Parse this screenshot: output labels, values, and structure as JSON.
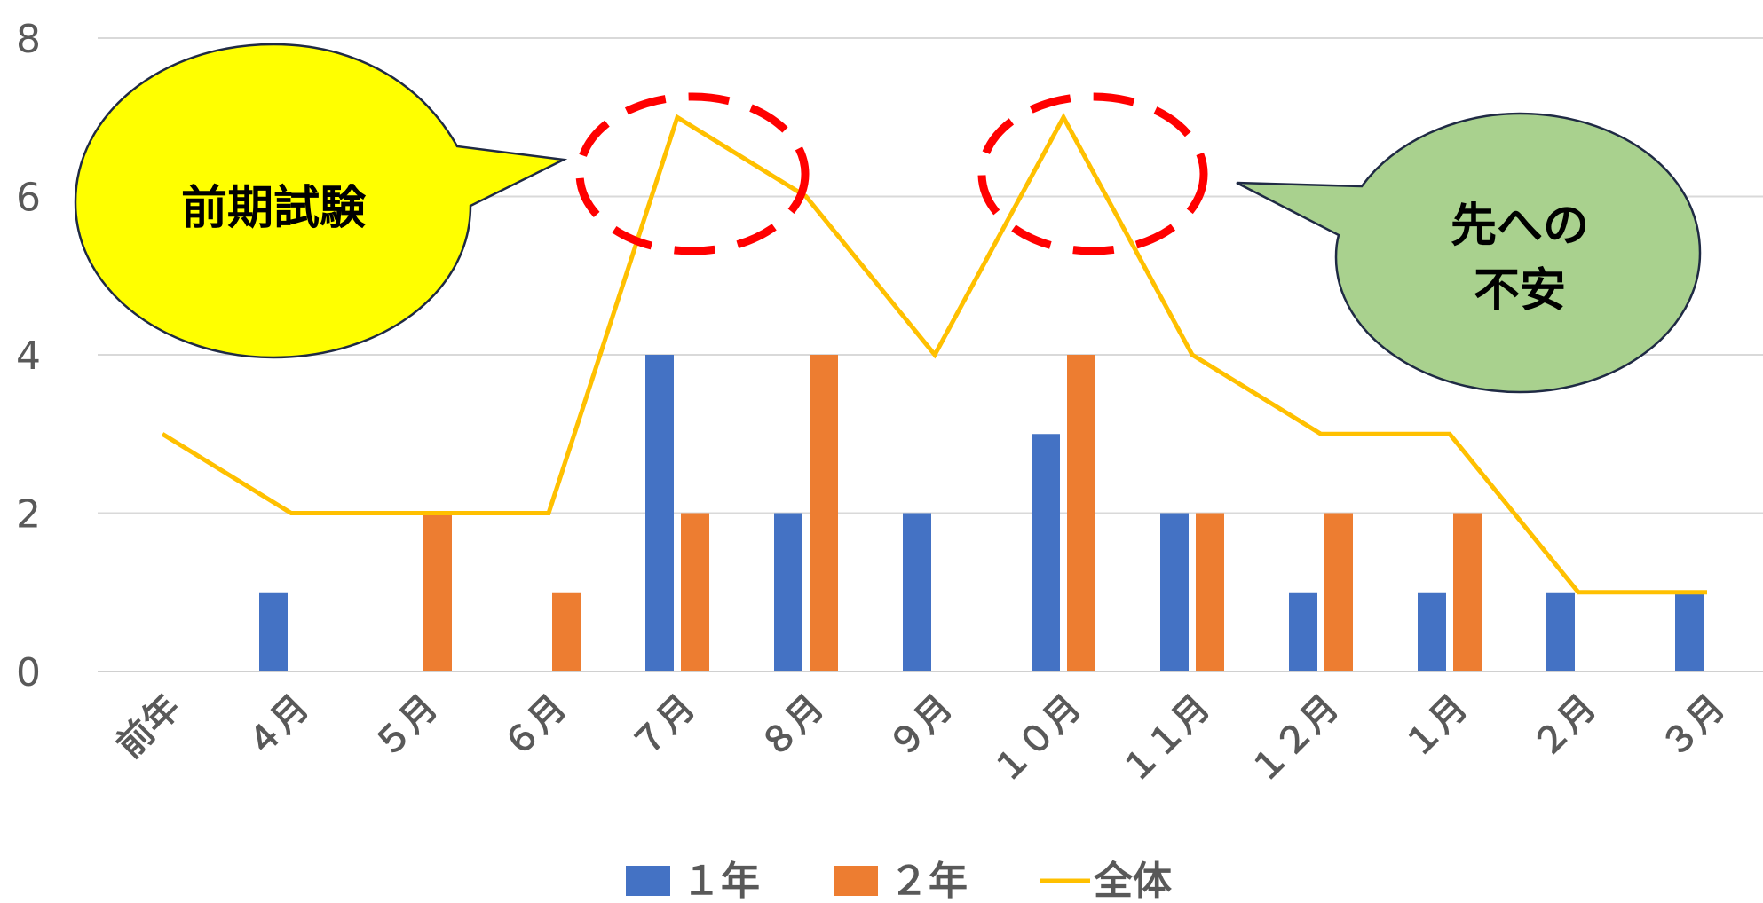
{
  "chart_data": {
    "type": "bar",
    "categories": [
      "前年",
      "4月",
      "5月",
      "6月",
      "7月",
      "8月",
      "9月",
      "10月",
      "11月",
      "12月",
      "1月",
      "2月",
      "3月"
    ],
    "category_labels": [
      "前年",
      "４月",
      "５月",
      "６月",
      "７月",
      "８月",
      "９月",
      "１０月",
      "１１月",
      "１２月",
      "１月",
      "２月",
      "３月"
    ],
    "series": [
      {
        "name": "１年",
        "type": "bar",
        "color": "#4472C4",
        "values": [
          0,
          1,
          0,
          0,
          4,
          2,
          2,
          3,
          2,
          1,
          1,
          1,
          1
        ]
      },
      {
        "name": "２年",
        "type": "bar",
        "color": "#ED7D31",
        "values": [
          0,
          0,
          2,
          1,
          2,
          4,
          0,
          4,
          2,
          2,
          2,
          0,
          0
        ]
      },
      {
        "name": "全体",
        "type": "line",
        "color": "#FFC000",
        "values": [
          3,
          2,
          2,
          2,
          7,
          6,
          4,
          7,
          4,
          3,
          3,
          1,
          1
        ]
      }
    ],
    "ylim": [
      0,
      8
    ],
    "yticks": [
      "0",
      "2",
      "4",
      "6",
      "8"
    ],
    "grid": true,
    "legend_position": "bottom",
    "annotations": [
      {
        "text": "前期試験",
        "shape": "speech-bubble",
        "color": "#FFFF00"
      },
      {
        "text_lines": [
          "先への",
          "不安"
        ],
        "shape": "speech-bubble",
        "color": "#A9D18E"
      }
    ],
    "highlights": [
      {
        "categories": [
          "7月",
          "8月"
        ],
        "style": "dashed-ellipse",
        "color": "#FF0000"
      },
      {
        "categories": [
          "10月"
        ],
        "style": "dashed-ellipse",
        "color": "#FF0000"
      }
    ]
  }
}
